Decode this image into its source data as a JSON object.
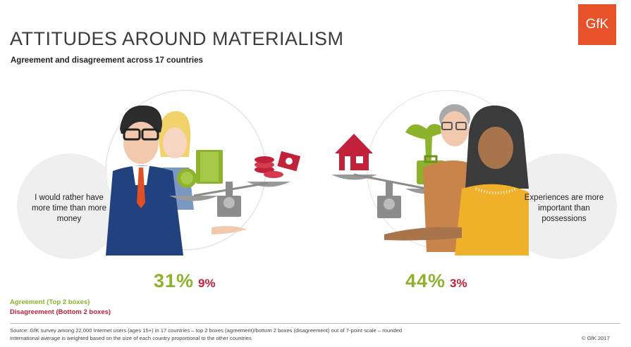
{
  "header": {
    "title": "ATTITUDES AROUND MATERIALISM",
    "subtitle": "Agreement and disagreement across 17 countries",
    "logo_text": "GfK"
  },
  "left_panel": {
    "statement": "I would rather have more time than more money",
    "agree_pct": "31%",
    "disagree_pct": "9%"
  },
  "right_panel": {
    "statement": "Experiences are more important than possessions",
    "agree_pct": "44%",
    "disagree_pct": "3%"
  },
  "legend": {
    "agree": "Agreement (Top 2 boxes)",
    "disagree": "Disagreement (Bottom 2 boxes)"
  },
  "footer": {
    "source_line1": "Source: GfK survey among 22,000 Internet users (ages 15+) in 17 countries – top 2 boxes (agreement)/bottom 2 boxes (disagreement) out of 7-point scale – rounded",
    "source_line2": "International average is weighted based on the size of each country proportional to the other countries",
    "copyright": "© GfK 2017"
  },
  "colors": {
    "agree": "#8db22c",
    "disagree": "#c2213a",
    "brand": "#e8522a"
  }
}
